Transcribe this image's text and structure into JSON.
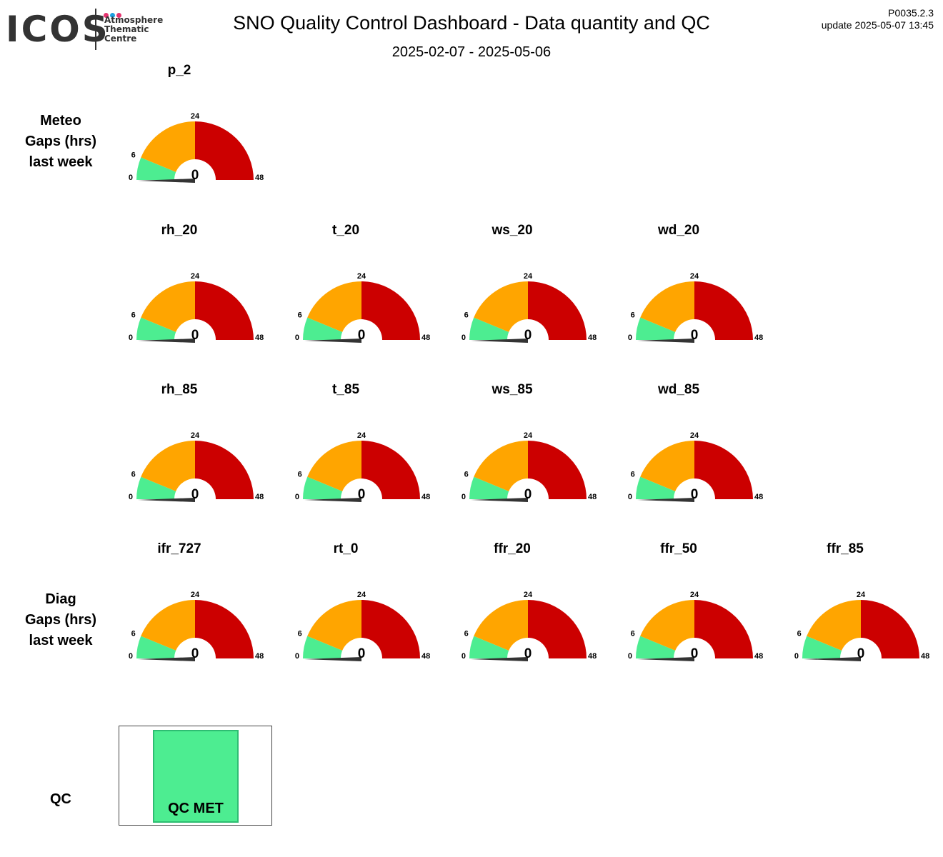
{
  "header": {
    "logo_text": "ICOS",
    "logo_sub": [
      "Atmosphere",
      "Thematic",
      "Centre"
    ],
    "logo_dot_colors": [
      "#e6336f",
      "#1fa0e0",
      "#e6336f"
    ],
    "title": "SNO  Quality Control Dashboard - Data quantity and QC",
    "subtitle": "2025-02-07 - 2025-05-06",
    "version": "P0035.2.3",
    "update": "update  2025-05-07 13:45"
  },
  "row_labels": {
    "meteo": [
      "Meteo",
      "Gaps (hrs)",
      "last week"
    ],
    "diag": [
      "Diag",
      "Gaps (hrs)",
      "last week"
    ],
    "qc": "QC"
  },
  "qc": {
    "label": "QC MET",
    "color": "#4ded91"
  },
  "chart_data": {
    "type": "gauge",
    "unit": "hrs",
    "range": [
      0,
      48
    ],
    "bands": [
      {
        "from": 0,
        "to": 6,
        "color": "#4ded91"
      },
      {
        "from": 6,
        "to": 24,
        "color": "#ffa500"
      },
      {
        "from": 24,
        "to": 48,
        "color": "#cc0000"
      }
    ],
    "tick_labels": [
      "0",
      "6",
      "24",
      "48"
    ],
    "gauges": [
      {
        "name": "p_2",
        "value": 0
      },
      {
        "name": "rh_20",
        "value": 0
      },
      {
        "name": "t_20",
        "value": 0
      },
      {
        "name": "ws_20",
        "value": 0
      },
      {
        "name": "wd_20",
        "value": 0
      },
      {
        "name": "rh_85",
        "value": 0
      },
      {
        "name": "t_85",
        "value": 0
      },
      {
        "name": "ws_85",
        "value": 0
      },
      {
        "name": "wd_85",
        "value": 0
      },
      {
        "name": "ifr_727",
        "value": 0
      },
      {
        "name": "rt_0",
        "value": 0
      },
      {
        "name": "ffr_20",
        "value": 0
      },
      {
        "name": "ffr_50",
        "value": 0
      },
      {
        "name": "ffr_85",
        "value": 0
      }
    ]
  }
}
